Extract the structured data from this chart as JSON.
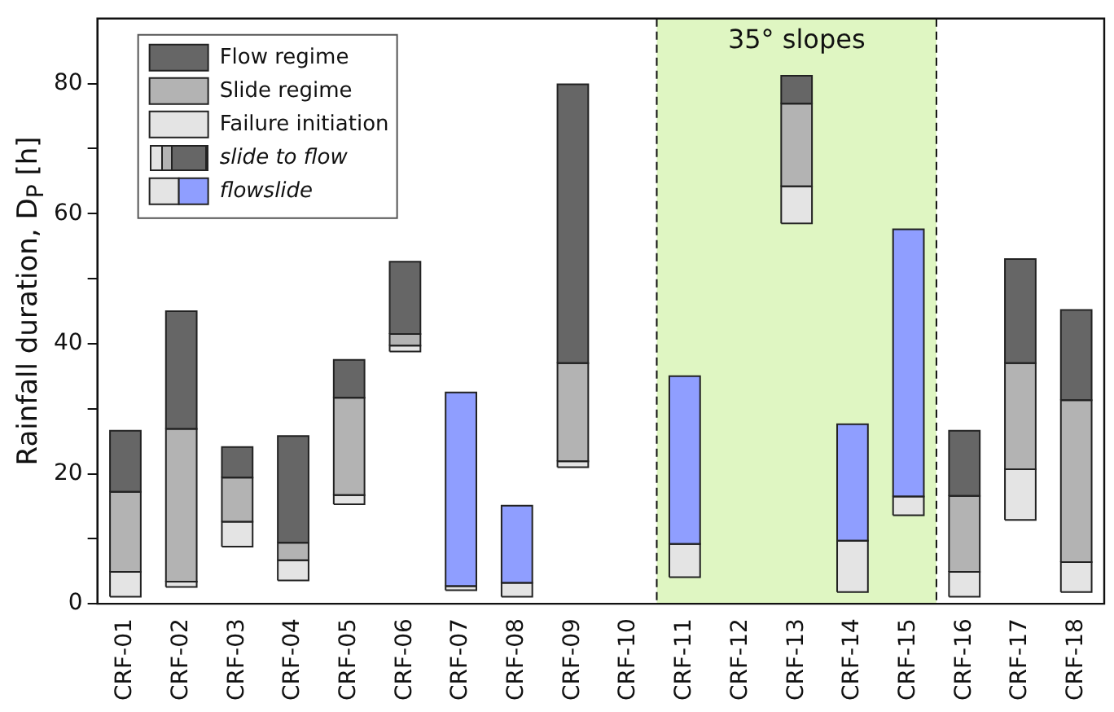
{
  "chart_data": {
    "type": "bar",
    "stacked": true,
    "ylabel": "Rainfall duration, D$_{P}$ [h]",
    "categories": [
      "CRF-01",
      "CRF-02",
      "CRF-03",
      "CRF-04",
      "CRF-05",
      "CRF-06",
      "CRF-07",
      "CRF-08",
      "CRF-09",
      "CRF-10",
      "CRF-11",
      "CRF-12",
      "CRF-13",
      "CRF-14",
      "CRF-15",
      "CRF-16",
      "CRF-17",
      "CRF-18"
    ],
    "series": [
      {
        "name": "Failure initiation",
        "color": "#e4e4e4",
        "base": [
          1.1,
          2.6,
          8.8,
          3.6,
          15.3,
          38.8,
          2.1,
          1.1,
          21,
          null,
          4.1,
          null,
          58.5,
          1.8,
          13.6,
          1.1,
          12.9,
          1.8
        ],
        "values": [
          3.8,
          0.8,
          3.8,
          3.1,
          1.4,
          0.9,
          0.6,
          2.1,
          0.9,
          null,
          5.1,
          null,
          5.7,
          7.9,
          2.9,
          3.8,
          7.8,
          4.6
        ]
      },
      {
        "name": "Slide regime",
        "color": "#b3b3b3",
        "values": [
          12.3,
          23.5,
          6.8,
          2.7,
          15,
          1.8,
          null,
          null,
          15.1,
          null,
          null,
          null,
          12.7,
          null,
          null,
          11.7,
          16.3,
          24.9
        ]
      },
      {
        "name": "Flow regime",
        "color": "#666666",
        "values": [
          9.4,
          18.1,
          4.7,
          16.4,
          5.8,
          11.1,
          null,
          null,
          42.9,
          null,
          null,
          null,
          4.3,
          null,
          null,
          10,
          16,
          13.9
        ]
      },
      {
        "name": "flowslide",
        "color": "#8f9eff",
        "values": [
          null,
          null,
          null,
          null,
          null,
          null,
          29.8,
          11.9,
          null,
          null,
          25.8,
          null,
          null,
          17.9,
          41.1,
          null,
          null,
          null
        ]
      }
    ],
    "annotations": [
      "slide to flow"
    ],
    "bands": [
      {
        "axis": "x",
        "from": "CRF-11",
        "to": "CRF-15",
        "label": "35° slopes",
        "color": "#dff6c2"
      }
    ],
    "ylim": [
      0,
      90
    ],
    "yticks": [
      0,
      {
        "value": 10,
        "label": null
      },
      20,
      {
        "value": 30,
        "label": null
      },
      40,
      {
        "value": 50,
        "label": null
      },
      60,
      {
        "value": 70,
        "label": null
      },
      80
    ],
    "legend": "top left",
    "grid": false
  }
}
